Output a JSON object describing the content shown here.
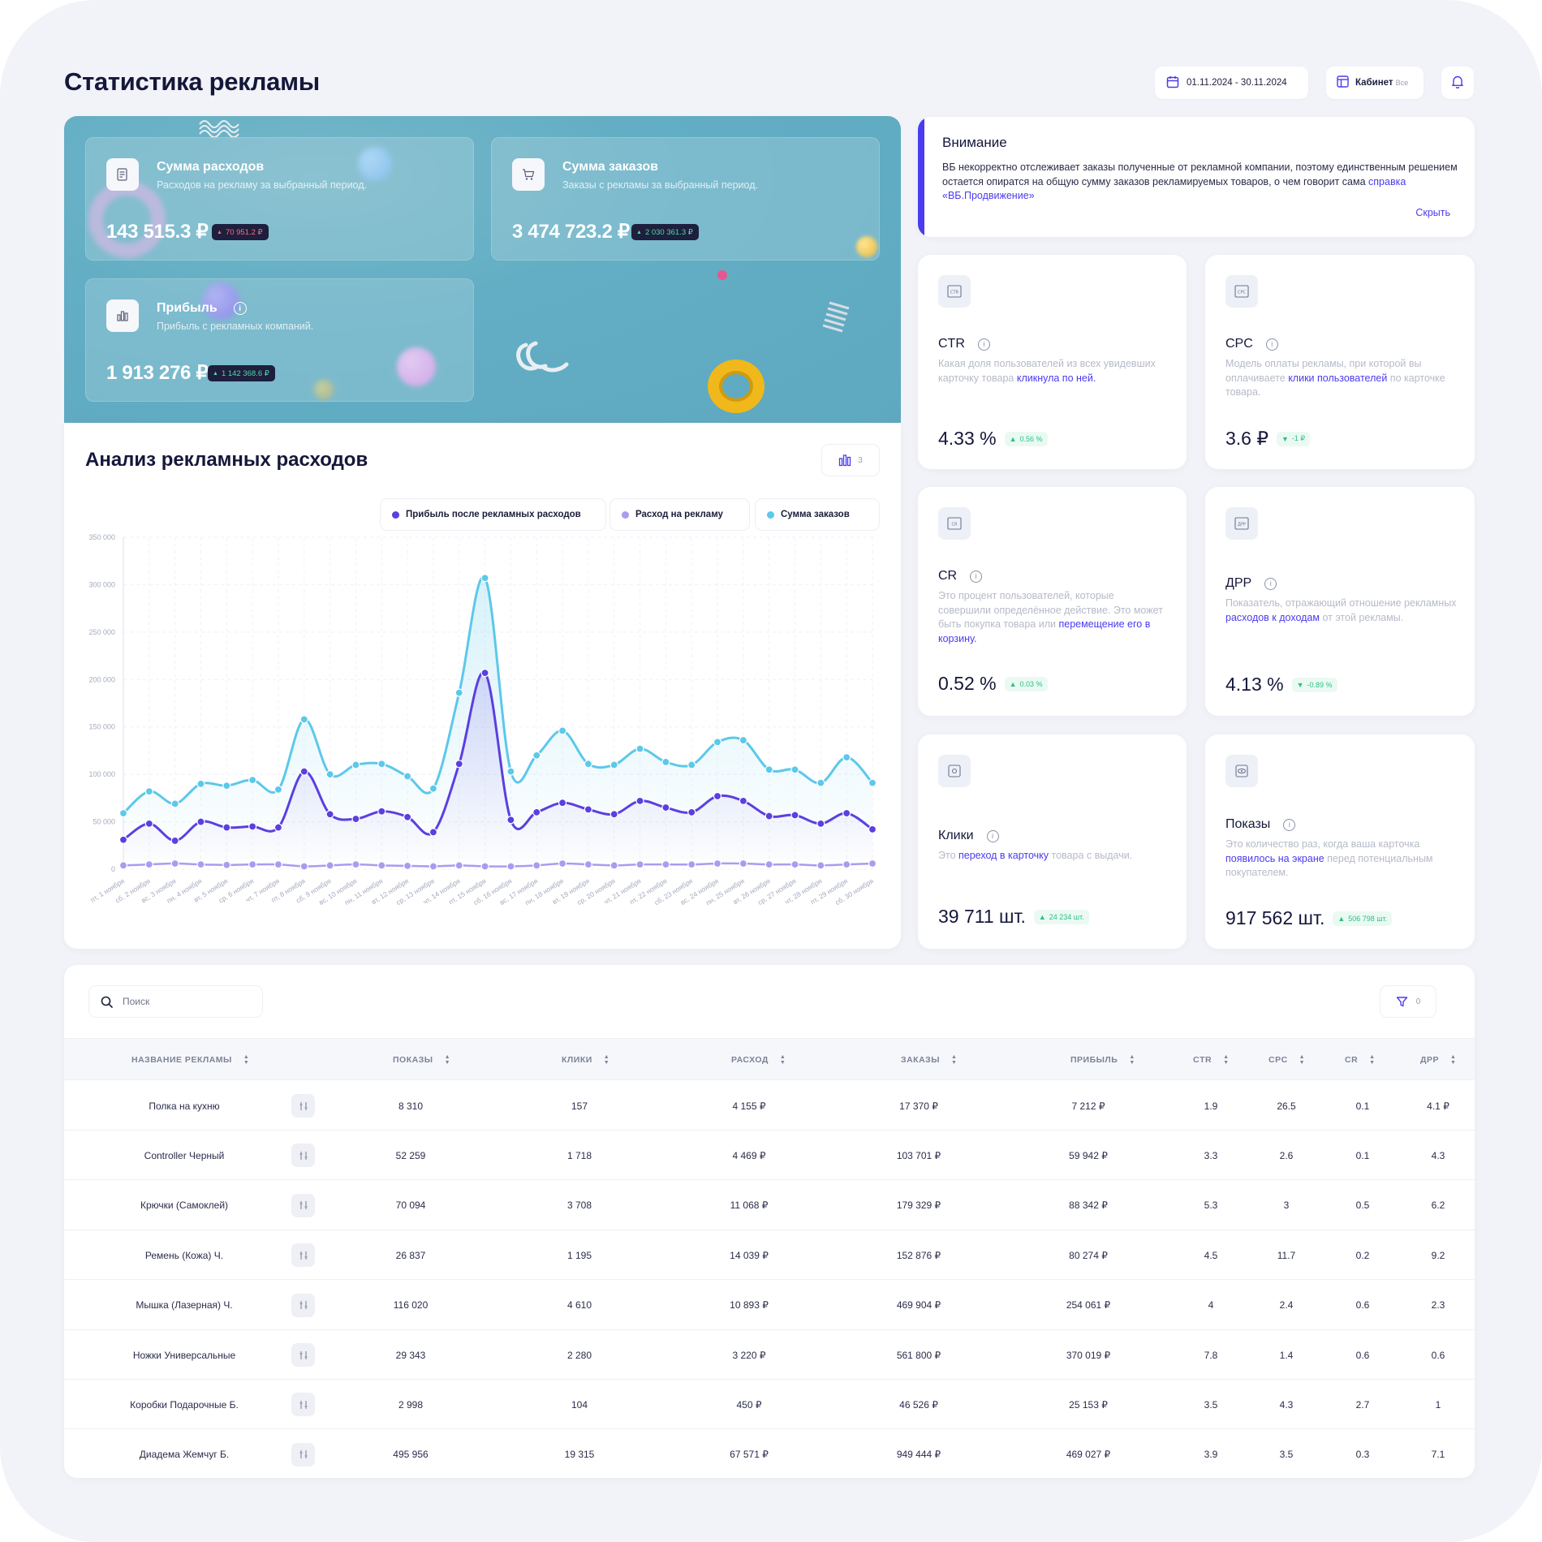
{
  "page": {
    "title": "Статистика рекламы"
  },
  "header": {
    "date_range": "01.11.2024 - 30.11.2024",
    "cabinet_label": "Кабинет",
    "cabinet_value": "Все"
  },
  "summary": {
    "expenses": {
      "title": "Сумма расходов",
      "subtitle": "Расходов на рекламу за выбранный период.",
      "value": "143 515.3 ₽",
      "delta": "70 951.2 ₽"
    },
    "orders": {
      "title": "Сумма заказов",
      "subtitle": "Заказы с рекламы за выбранный период.",
      "value": "3 474 723.2 ₽",
      "delta": "2 030 361.3 ₽"
    },
    "profit": {
      "title": "Прибыль",
      "subtitle": "Прибыль с рекламных компаний.",
      "value": "1 913 276 ₽",
      "delta": "1 142 368.6 ₽"
    }
  },
  "alert": {
    "title": "Внимание",
    "text": "ВБ некорректно отслеживает заказы полученные от рекламной компании, поэтому единственным решением остается опиратся на общую сумму заказов рекламируемых товаров, о чем говорит сама ",
    "link": "справка «ВБ.Продвижение»",
    "hide": "Скрыть"
  },
  "metrics": {
    "ctr": {
      "title": "CTR",
      "icon_text": "CTR",
      "desc_pre": "Какая доля пользователей из всех увидевших карточку товара ",
      "desc_link": "кликнула по ней.",
      "desc_post": "",
      "value": "4.33 %",
      "delta": "0.56 %"
    },
    "cpc": {
      "title": "CPC",
      "icon_text": "CPC",
      "desc_pre": "Модель оплаты рекламы, при которой вы оплачиваете ",
      "desc_link": "клики пользователей",
      "desc_post": " по карточке товара.",
      "value": "3.6 ₽",
      "delta": "-1 ₽"
    },
    "cr": {
      "title": "CR",
      "icon_text": "CR",
      "desc_pre": "Это процент пользователей, которые совершили определённое действие. Это может быть покупка товара или ",
      "desc_link": "перемещение его в корзину.",
      "desc_post": "",
      "value": "0.52 %",
      "delta": "0.03 %"
    },
    "drr": {
      "title": "ДРР",
      "icon_text": "ДРР",
      "desc_pre": "Показатель, отражающий отношение рекламных ",
      "desc_link": "расходов к доходам",
      "desc_post": " от этой рекламы.",
      "value": "4.13 %",
      "delta": "-0.89 %"
    },
    "clicks": {
      "title": "Клики",
      "desc_pre": "Это ",
      "desc_link": "переход в карточку",
      "desc_post": " товара с выдачи.",
      "value": "39 711 шт.",
      "delta": "24 234 шт."
    },
    "views": {
      "title": "Показы",
      "desc_pre": "Это количество раз, когда ваша карточка ",
      "desc_link": "появилось на экране",
      "desc_post": " перед потенциальным покупателем.",
      "value": "917 562 шт.",
      "delta": "506 798 шт."
    }
  },
  "chart_section": {
    "title": "Анализ рекламных расходов",
    "type_count": "3"
  },
  "chart_data": {
    "type": "line",
    "ylim": [
      0,
      350000
    ],
    "yticks": [
      "0",
      "50 000",
      "100 000",
      "150 000",
      "200 000",
      "250 000",
      "300 000",
      "350 000"
    ],
    "ytick_values": [
      0,
      50000,
      100000,
      150000,
      200000,
      250000,
      300000,
      350000
    ],
    "grid": true,
    "legend_position": "top-right",
    "categories": [
      "пт, 1 ноября",
      "сб, 2 ноября",
      "вс, 3 ноября",
      "пн, 4 ноября",
      "вт, 5 ноября",
      "ср, 6 ноября",
      "чт, 7 ноября",
      "пт, 8 ноября",
      "сб, 9 ноября",
      "вс, 10 ноября",
      "пн, 11 ноября",
      "вт, 12 ноября",
      "ср, 13 ноября",
      "чт, 14 ноября",
      "пт, 15 ноября",
      "сб, 16 ноября",
      "вс, 17 ноября",
      "пн, 18 ноября",
      "вт, 19 ноября",
      "ср, 20 ноября",
      "чт, 21 ноября",
      "пт, 22 ноября",
      "сб, 23 ноября",
      "вс, 24 ноября",
      "пн, 25 ноября",
      "вт, 26 ноября",
      "ср, 27 ноября",
      "чт, 28 ноября",
      "пт, 29 ноября",
      "сб, 30 ноября"
    ],
    "series": [
      {
        "name": "Прибыль после рекламных расходов",
        "color": "#5b3fe0",
        "values": [
          31000,
          48000,
          30000,
          50000,
          44000,
          45000,
          44000,
          103000,
          58000,
          53000,
          61000,
          55000,
          39000,
          111000,
          207000,
          52000,
          60000,
          70000,
          63000,
          58000,
          72000,
          65000,
          60000,
          77000,
          72000,
          56000,
          57000,
          48000,
          59000,
          42000
        ]
      },
      {
        "name": "Расход на рекламу",
        "color": "#a99cf0",
        "values": [
          4000,
          5000,
          6000,
          5000,
          4500,
          5000,
          5000,
          3000,
          4000,
          5000,
          4000,
          3500,
          3000,
          4000,
          3000,
          3000,
          4000,
          6000,
          5000,
          4000,
          5000,
          5000,
          5000,
          6000,
          6000,
          5000,
          5000,
          4000,
          5000,
          6000
        ]
      },
      {
        "name": "Сумма заказов",
        "color": "#5cc8ea",
        "values": [
          59000,
          82000,
          69000,
          90000,
          88000,
          94000,
          84000,
          158000,
          100000,
          110000,
          111000,
          98000,
          85000,
          186000,
          307000,
          103000,
          120000,
          146000,
          111000,
          110000,
          127000,
          113000,
          110000,
          134000,
          136000,
          105000,
          105000,
          91000,
          118000,
          91000
        ]
      }
    ]
  },
  "table": {
    "search_placeholder": "Поиск",
    "filter_count": "0",
    "columns": [
      "НАЗВАНИЕ РЕКЛАМЫ",
      "ПОКАЗЫ",
      "КЛИКИ",
      "РАСХОД",
      "ЗАКАЗЫ",
      "ПРИБЫЛЬ",
      "CTR",
      "CPC",
      "CR",
      "ДРР"
    ],
    "rows": [
      [
        "Полка на кухню",
        "8 310",
        "157",
        "4 155 ₽",
        "17 370 ₽",
        "7 212 ₽",
        "1.9",
        "26.5",
        "0.1",
        "4.1 ₽"
      ],
      [
        "Controller Черный",
        "52 259",
        "1 718",
        "4 469 ₽",
        "103 701 ₽",
        "59 942 ₽",
        "3.3",
        "2.6",
        "0.1",
        "4.3"
      ],
      [
        "Крючки (Самоклей)",
        "70 094",
        "3 708",
        "11 068 ₽",
        "179 329 ₽",
        "88 342 ₽",
        "5.3",
        "3",
        "0.5",
        "6.2"
      ],
      [
        "Ремень (Кожа) Ч.",
        "26 837",
        "1 195",
        "14 039 ₽",
        "152 876 ₽",
        "80 274 ₽",
        "4.5",
        "11.7",
        "0.2",
        "9.2"
      ],
      [
        "Мышка (Лазерная) Ч.",
        "116 020",
        "4 610",
        "10 893 ₽",
        "469 904 ₽",
        "254 061 ₽",
        "4",
        "2.4",
        "0.6",
        "2.3"
      ],
      [
        "Ножки Универсальные",
        "29 343",
        "2 280",
        "3 220 ₽",
        "561 800 ₽",
        "370 019 ₽",
        "7.8",
        "1.4",
        "0.6",
        "0.6"
      ],
      [
        "Коробки Подарочные Б.",
        "2 998",
        "104",
        "450 ₽",
        "46 526 ₽",
        "25 153 ₽",
        "3.5",
        "4.3",
        "2.7",
        "1"
      ],
      [
        "Диадема Жемчуг Б.",
        "495 956",
        "19 315",
        "67 571 ₽",
        "949 444 ₽",
        "469 027 ₽",
        "3.9",
        "3.5",
        "0.3",
        "7.1"
      ]
    ]
  }
}
